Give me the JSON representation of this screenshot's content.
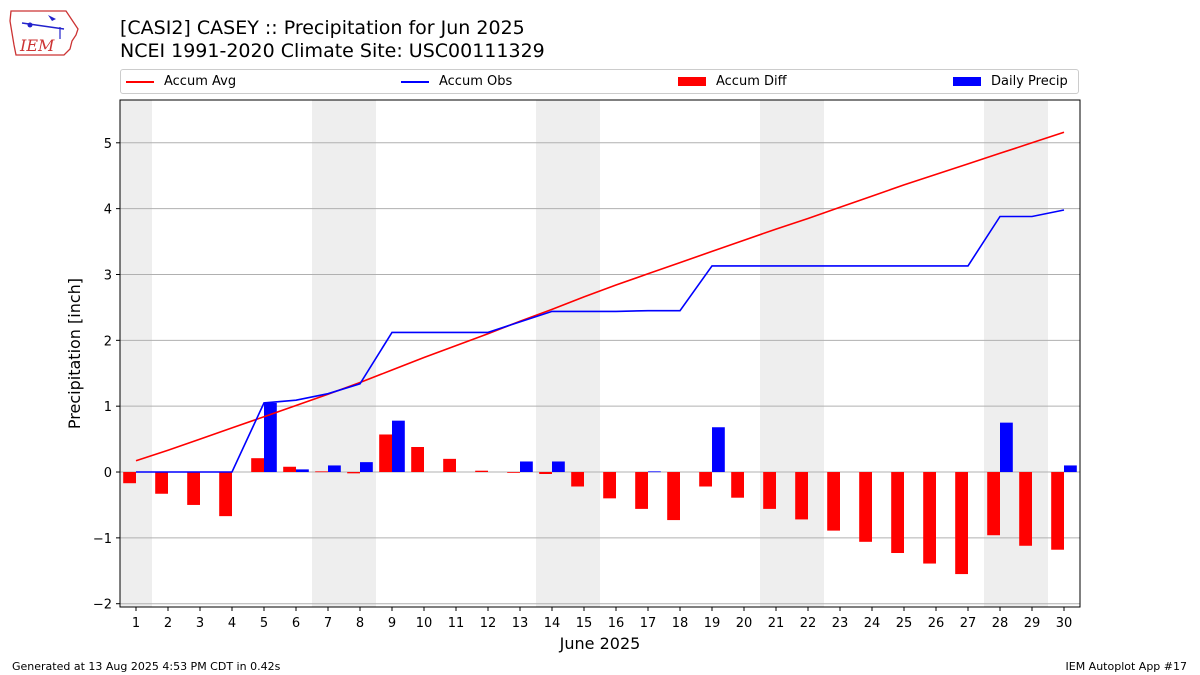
{
  "header": {
    "title_line1": "[CASI2] CASEY :: Precipitation for Jun 2025",
    "title_line2": "NCEI 1991-2020 Climate Site: USC00111329",
    "logo_text": "IEM"
  },
  "footer": {
    "generated": "Generated at 13 Aug 2025 4:53 PM CDT in 0.42s",
    "app": "IEM Autoplot App #17"
  },
  "chart_data": {
    "type": "bar",
    "title": "[CASI2] CASEY :: Precipitation for Jun 2025",
    "subtitle": "NCEI 1991-2020 Climate Site: USC00111329",
    "xlabel": "June 2025",
    "ylabel": "Precipitation [inch]",
    "ylim": [
      -2.05,
      5.65
    ],
    "xlim": [
      0.5,
      30.5
    ],
    "yticks": [
      -2,
      -1,
      0,
      1,
      2,
      3,
      4,
      5
    ],
    "ytick_labels": [
      "−2",
      "−1",
      "0",
      "1",
      "2",
      "3",
      "4",
      "5"
    ],
    "grid": "horizontal",
    "legend_position": "top",
    "weekend_shading": [
      [
        0.5,
        1.5
      ],
      [
        6.5,
        8.5
      ],
      [
        13.5,
        15.5
      ],
      [
        20.5,
        22.5
      ],
      [
        27.5,
        29.5
      ]
    ],
    "x": [
      1,
      2,
      3,
      4,
      5,
      6,
      7,
      8,
      9,
      10,
      11,
      12,
      13,
      14,
      15,
      16,
      17,
      18,
      19,
      20,
      21,
      22,
      23,
      24,
      25,
      26,
      27,
      28,
      29,
      30
    ],
    "series": [
      {
        "name": "Accum Avg",
        "kind": "line",
        "color": "#ff0000",
        "values": [
          0.17,
          0.33,
          0.5,
          0.67,
          0.84,
          1.01,
          1.18,
          1.36,
          1.55,
          1.74,
          1.92,
          2.1,
          2.29,
          2.47,
          2.66,
          2.84,
          3.01,
          3.18,
          3.35,
          3.52,
          3.69,
          3.85,
          4.02,
          4.19,
          4.36,
          4.52,
          4.68,
          4.84,
          5.0,
          5.16
        ]
      },
      {
        "name": "Accum Obs",
        "kind": "line",
        "color": "#0000ff",
        "values": [
          0.0,
          0.0,
          0.0,
          0.0,
          1.05,
          1.09,
          1.19,
          1.34,
          2.12,
          2.12,
          2.12,
          2.12,
          2.28,
          2.44,
          2.44,
          2.44,
          2.45,
          2.45,
          3.13,
          3.13,
          3.13,
          3.13,
          3.13,
          3.13,
          3.13,
          3.13,
          3.13,
          3.88,
          3.88,
          3.98
        ]
      },
      {
        "name": "Accum Diff",
        "kind": "bar",
        "color": "#ff0000",
        "values": [
          -0.17,
          -0.33,
          -0.5,
          -0.67,
          0.21,
          0.08,
          0.01,
          -0.02,
          0.57,
          0.38,
          0.2,
          0.02,
          -0.01,
          -0.03,
          -0.22,
          -0.4,
          -0.56,
          -0.73,
          -0.22,
          -0.39,
          -0.56,
          -0.72,
          -0.89,
          -1.06,
          -1.23,
          -1.39,
          -1.55,
          -0.96,
          -1.12,
          -1.18
        ]
      },
      {
        "name": "Daily Precip",
        "kind": "bar",
        "color": "#0000ff",
        "values": [
          0.0,
          0.0,
          0.0,
          0.0,
          1.05,
          0.04,
          0.1,
          0.15,
          0.78,
          0.0,
          0.0,
          0.0,
          0.16,
          0.16,
          0.0,
          0.0,
          0.01,
          0.0,
          0.68,
          0.0,
          0.0,
          0.0,
          0.0,
          0.0,
          0.0,
          0.0,
          0.0,
          0.75,
          0.0,
          0.1
        ]
      }
    ]
  }
}
